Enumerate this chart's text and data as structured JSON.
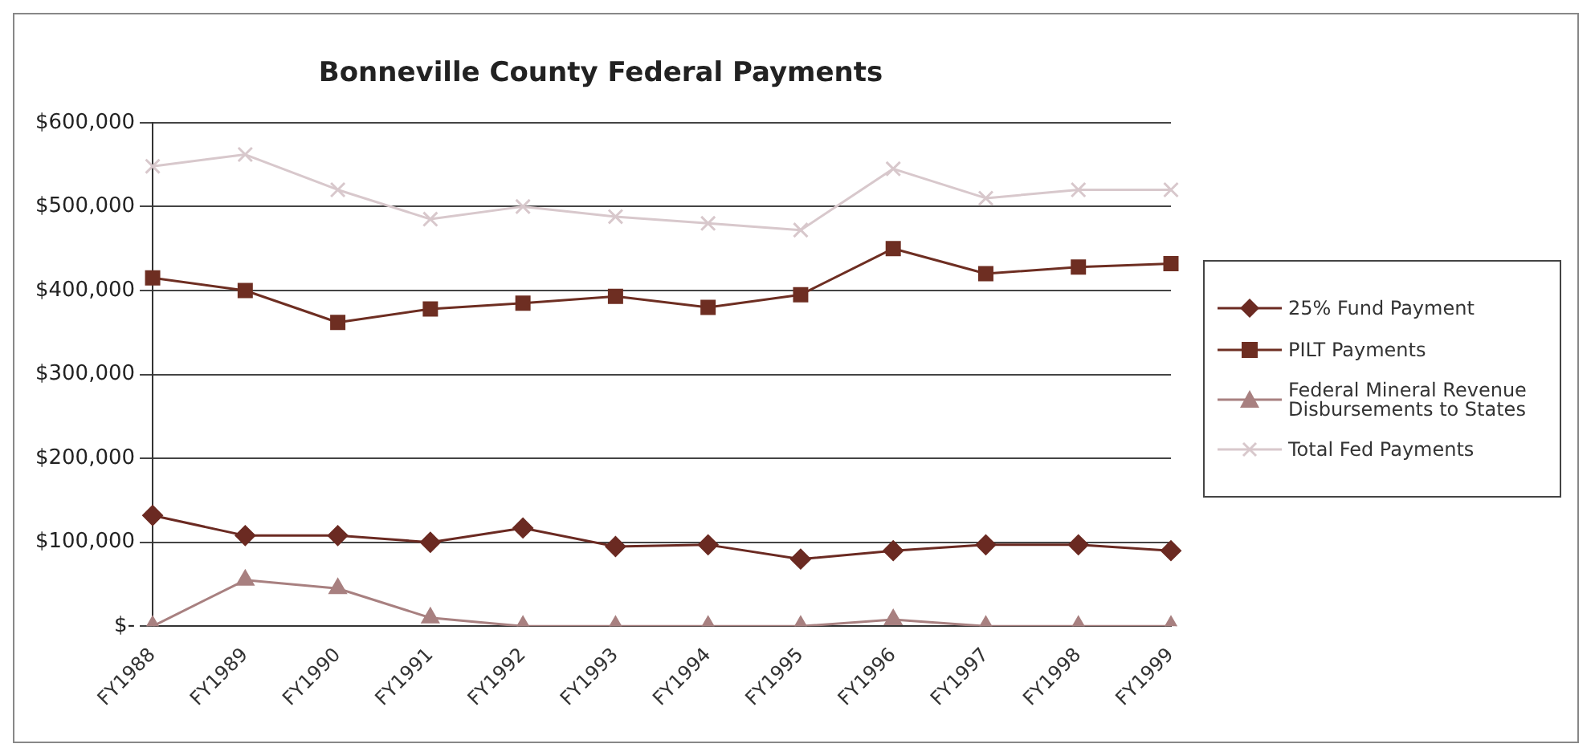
{
  "chart_data": {
    "type": "line",
    "title": "Bonneville County Federal Payments",
    "categories": [
      "FY1988",
      "FY1989",
      "FY1990",
      "FY1991",
      "FY1992",
      "FY1993",
      "FY1994",
      "FY1995",
      "FY1996",
      "FY1997",
      "FY1998",
      "FY1999"
    ],
    "series": [
      {
        "name": "25% Fund Payment",
        "color": "#6b2a22",
        "marker": "diamond",
        "values": [
          132000,
          108000,
          108000,
          100000,
          117000,
          95000,
          97000,
          80000,
          90000,
          97000,
          97000,
          90000
        ]
      },
      {
        "name": "PILT Payments",
        "color": "#6e2e22",
        "marker": "square",
        "values": [
          415000,
          400000,
          362000,
          378000,
          385000,
          393000,
          380000,
          395000,
          450000,
          420000,
          428000,
          432000
        ]
      },
      {
        "name": "Federal Mineral Revenue Disbursements to States",
        "color": "#a88080",
        "marker": "triangle",
        "values": [
          0,
          55000,
          45000,
          10000,
          0,
          0,
          0,
          0,
          8000,
          0,
          0,
          0
        ]
      },
      {
        "name": "Total Fed Payments",
        "color": "#d8c8cc",
        "marker": "cross",
        "values": [
          548000,
          562000,
          520000,
          485000,
          500000,
          488000,
          480000,
          472000,
          545000,
          510000,
          520000,
          520000
        ]
      }
    ],
    "ylim": [
      0,
      600000
    ],
    "yticks": [
      {
        "value": 0,
        "label": "$-"
      },
      {
        "value": 100000,
        "label": "$100,000"
      },
      {
        "value": 200000,
        "label": "$200,000"
      },
      {
        "value": 300000,
        "label": "$300,000"
      },
      {
        "value": 400000,
        "label": "$400,000"
      },
      {
        "value": 500000,
        "label": "$500,000"
      },
      {
        "value": 600000,
        "label": "$600,000"
      }
    ],
    "grid": "y",
    "legend": "right"
  }
}
